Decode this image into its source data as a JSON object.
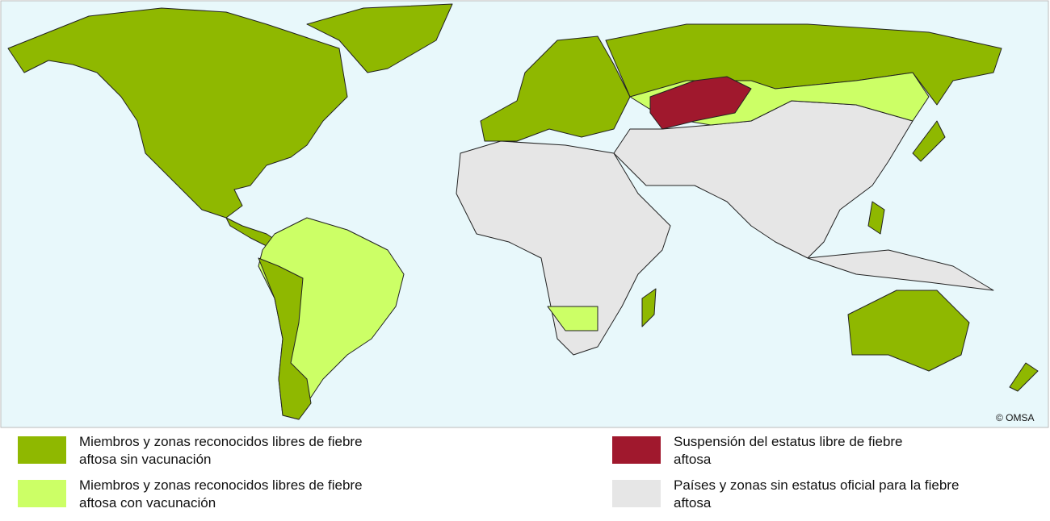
{
  "legend": [
    {
      "label": "Miembros y zonas reconocidos libres de fiebre aftosa sin vacunación",
      "color": "#8fb800"
    },
    {
      "label": "Miembros y zonas reconocidos libres de fiebre aftosa con vacunación",
      "color": "#ccff66"
    },
    {
      "label": "Suspensión del estatus libre de fiebre aftosa",
      "color": "#a0182d"
    },
    {
      "label": "Países y zonas sin estatus oficial para la fiebre aftosa",
      "color": "#e6e6e6"
    }
  ],
  "copyright": "© OMSA"
}
